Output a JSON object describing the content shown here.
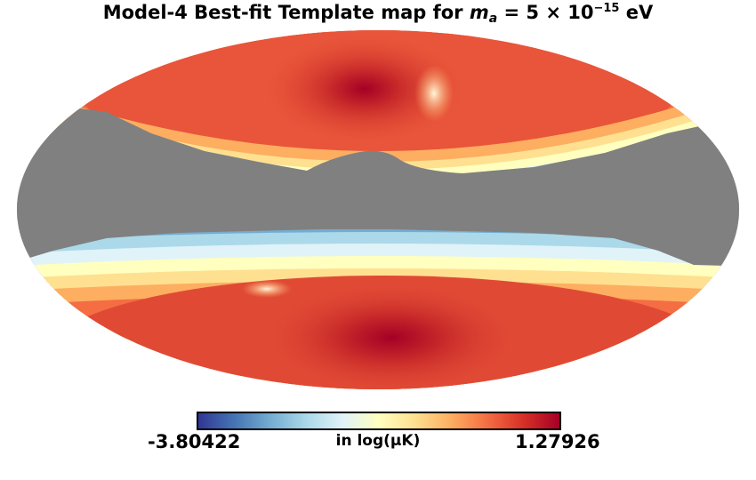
{
  "title": {
    "prefix": "Model-4 Best-fit Template map for ",
    "var": "m",
    "sub": "a",
    "eq": " =  5 × 10",
    "exp": "−15",
    "unit": " eV"
  },
  "colorbar": {
    "min_label": "-3.80422",
    "max_label": "1.27926",
    "unit_label": "in log(μK)",
    "min": -3.80422,
    "max": 1.27926,
    "colormap": [
      "#313695",
      "#4575b4",
      "#74add1",
      "#abd9e9",
      "#e0f3f8",
      "#ffffbf",
      "#fee090",
      "#fdae61",
      "#f46d43",
      "#d73027",
      "#a50026"
    ]
  },
  "map": {
    "projection": "mollweide",
    "mask_color": "#808080",
    "background": "#ffffff"
  }
}
